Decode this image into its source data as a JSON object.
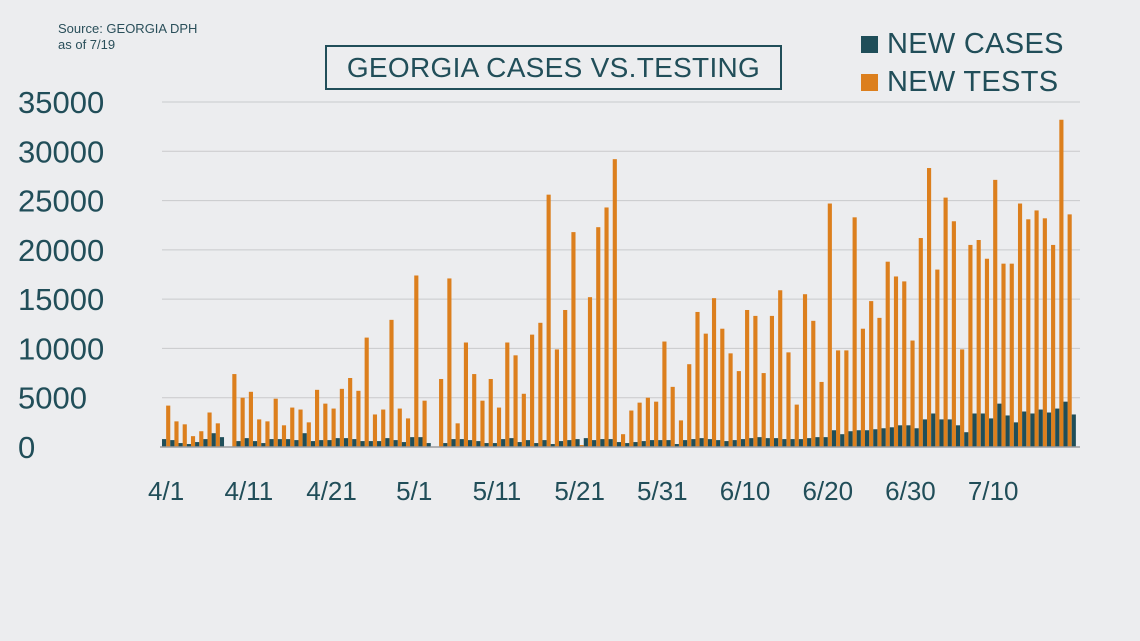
{
  "source_lines": [
    "Source: GEORGIA DPH",
    "as of 7/19"
  ],
  "title": "GEORGIA CASES VS.TESTING",
  "legend": [
    {
      "label": "NEW CASES",
      "color": "#1f4e59"
    },
    {
      "label": "NEW TESTS",
      "color": "#dc7f1d"
    }
  ],
  "chart_data": {
    "type": "bar",
    "title": "GEORGIA CASES VS.TESTING",
    "ylim": [
      0,
      35000
    ],
    "yticks": [
      0,
      5000,
      10000,
      15000,
      20000,
      25000,
      30000,
      35000
    ],
    "xtick_labels": [
      "4/1",
      "4/11",
      "4/21",
      "5/1",
      "5/11",
      "5/21",
      "5/31",
      "6/10",
      "6/20",
      "6/30",
      "7/10"
    ],
    "x_start": "4/1",
    "x_end": "7/19",
    "grid": true,
    "legend_position": "top-right",
    "series": [
      {
        "name": "NEW CASES",
        "color": "#1f4e59",
        "values": [
          800,
          700,
          400,
          300,
          500,
          800,
          1400,
          1000,
          0,
          600,
          900,
          600,
          400,
          800,
          800,
          800,
          700,
          1400,
          600,
          700,
          700,
          900,
          900,
          800,
          600,
          600,
          600,
          900,
          700,
          500,
          1000,
          1000,
          400,
          0,
          400,
          800,
          800,
          700,
          600,
          400,
          400,
          800,
          900,
          500,
          700,
          400,
          700,
          300,
          600,
          700,
          800,
          900,
          700,
          800,
          800,
          500,
          400,
          500,
          600,
          700,
          700,
          700,
          300,
          700,
          800,
          900,
          800,
          700,
          600,
          700,
          800,
          900,
          1000,
          900,
          900,
          800,
          800,
          800,
          900,
          1000,
          1000,
          1700,
          1300,
          1600,
          1700,
          1700,
          1800,
          1900,
          2000,
          2200,
          2200,
          1900,
          2800,
          3400,
          2800,
          2800,
          2200,
          1500,
          3400,
          3400,
          2900,
          4400,
          3200,
          2500,
          3600,
          3400,
          3800,
          3500,
          3900,
          4600,
          3300
        ]
      },
      {
        "name": "NEW TESTS",
        "color": "#dc7f1d",
        "values": [
          4200,
          2600,
          2300,
          1100,
          1600,
          3500,
          2400,
          0,
          7400,
          5000,
          5600,
          2800,
          2600,
          4900,
          2200,
          4000,
          3800,
          2500,
          5800,
          4400,
          3900,
          5900,
          7000,
          5700,
          11100,
          3300,
          3800,
          12900,
          3900,
          2900,
          17400,
          4700,
          0,
          6900,
          17100,
          2400,
          10600,
          7400,
          4700,
          6900,
          4000,
          10600,
          9300,
          5400,
          11400,
          12600,
          25600,
          9900,
          13900,
          21800,
          200,
          15200,
          22300,
          24300,
          29200,
          1300,
          3700,
          4500,
          5000,
          4600,
          10700,
          6100,
          2700,
          8400,
          13700,
          11500,
          15100,
          12000,
          9500,
          7700,
          13900,
          13300,
          7500,
          13300,
          15900,
          9600,
          4300,
          15500,
          12800,
          6600,
          24700,
          9800,
          9800,
          23300,
          12000,
          14800,
          13100,
          18800,
          17300,
          16800,
          10800,
          21200,
          28300,
          18000,
          25300,
          22900,
          9900,
          20500,
          21000,
          19100,
          27100,
          18600,
          18600,
          24700,
          23100,
          24000,
          23200,
          20500,
          33200,
          23600
        ]
      }
    ]
  }
}
